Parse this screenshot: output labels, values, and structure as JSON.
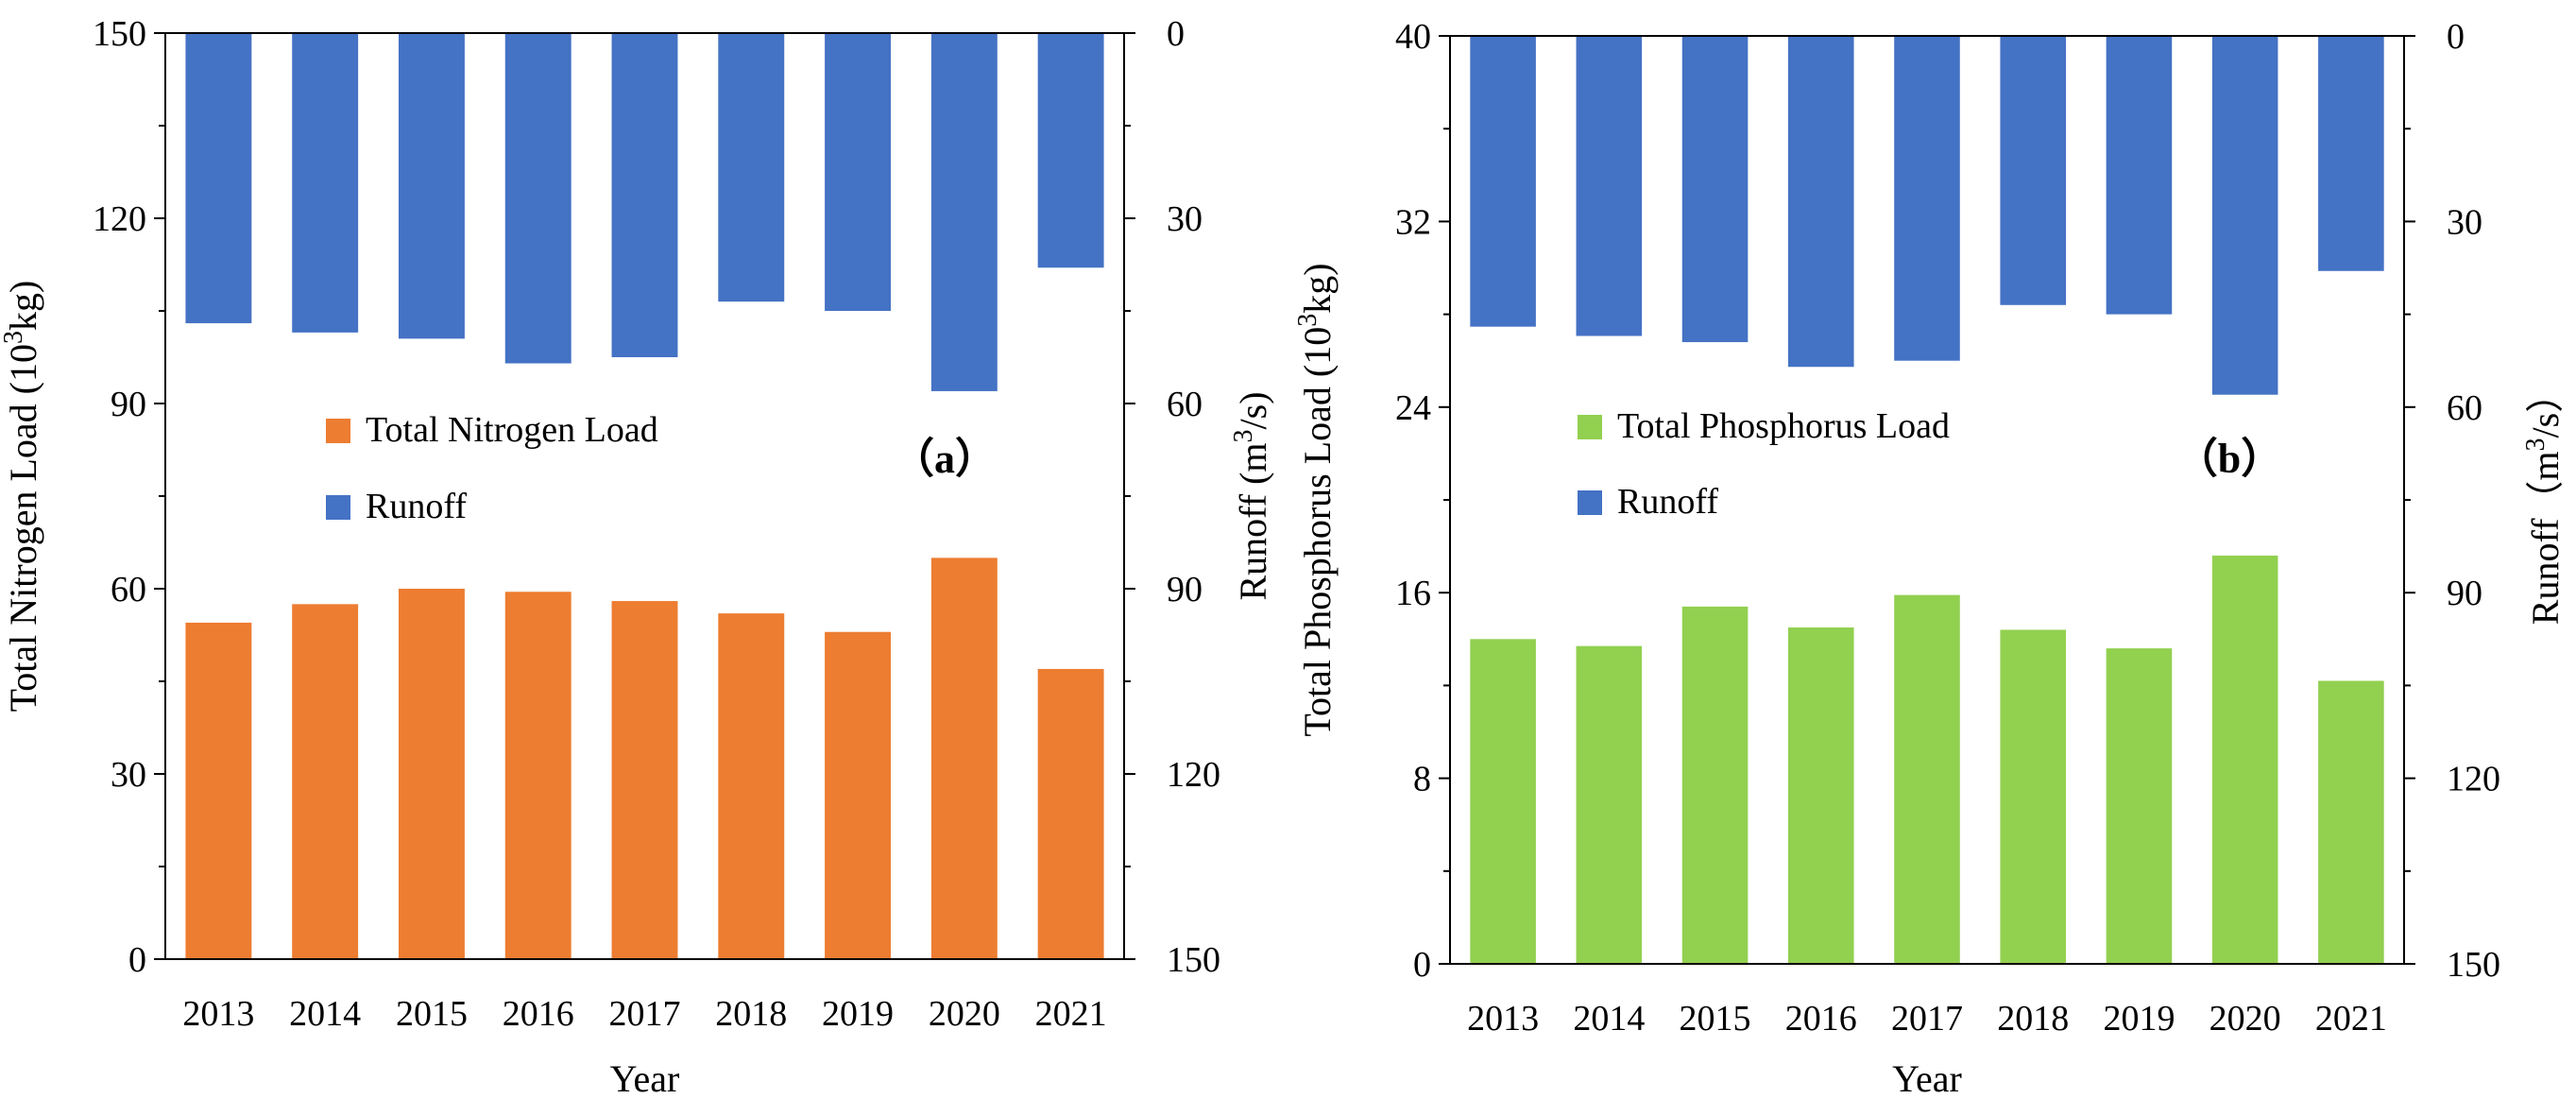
{
  "chart_data": [
    {
      "type": "bar",
      "panel_label": "（a）",
      "categories": [
        "2013",
        "2014",
        "2015",
        "2016",
        "2017",
        "2018",
        "2019",
        "2020",
        "2021"
      ],
      "series": [
        {
          "name": "Total Nitrogen Load",
          "axis": "left",
          "color": "#ED7D31",
          "values": [
            54.5,
            57.5,
            60.0,
            59.5,
            58.0,
            56.0,
            53.0,
            65.0,
            47.0
          ]
        },
        {
          "name": "Runoff",
          "axis": "right",
          "direction": "top-down",
          "color": "#4472C4",
          "values": [
            47.0,
            48.5,
            49.5,
            53.5,
            52.5,
            43.5,
            45.0,
            58.0,
            38.0
          ]
        }
      ],
      "xlabel": "Year",
      "ylabel": "Total Nitrogen Load (10³kg)",
      "ylabel_right": "Runoff (m³/s)",
      "ylim": [
        0,
        150
      ],
      "yticks": [
        "0",
        "30",
        "60",
        "90",
        "120",
        "150"
      ],
      "ylim_right": [
        0,
        150
      ],
      "yticks_right": [
        "0",
        "30",
        "60",
        "90",
        "120",
        "150"
      ],
      "right_axis_inverted": true,
      "legend_position": "center-left",
      "grid": false
    },
    {
      "type": "bar",
      "panel_label": "（b）",
      "categories": [
        "2013",
        "2014",
        "2015",
        "2016",
        "2017",
        "2018",
        "2019",
        "2020",
        "2021"
      ],
      "series": [
        {
          "name": "Total Phosphorus Load",
          "axis": "left",
          "color": "#92D050",
          "values": [
            14.0,
            13.7,
            15.4,
            14.5,
            15.9,
            14.4,
            13.6,
            17.6,
            12.2
          ]
        },
        {
          "name": "Runoff",
          "axis": "right",
          "direction": "top-down",
          "color": "#4472C4",
          "values": [
            47.0,
            48.5,
            49.5,
            53.5,
            52.5,
            43.5,
            45.0,
            58.0,
            38.0
          ]
        }
      ],
      "xlabel": "Year",
      "ylabel": "Total Phosphorus Load (10³kg)",
      "ylabel_right": "Runoff（m³/s）",
      "ylim": [
        0,
        40
      ],
      "yticks": [
        "0",
        "8",
        "16",
        "24",
        "32",
        "40"
      ],
      "ylim_right": [
        0,
        150
      ],
      "yticks_right": [
        "0",
        "30",
        "60",
        "90",
        "120",
        "150"
      ],
      "right_axis_inverted": true,
      "legend_position": "center-left",
      "grid": false
    }
  ]
}
